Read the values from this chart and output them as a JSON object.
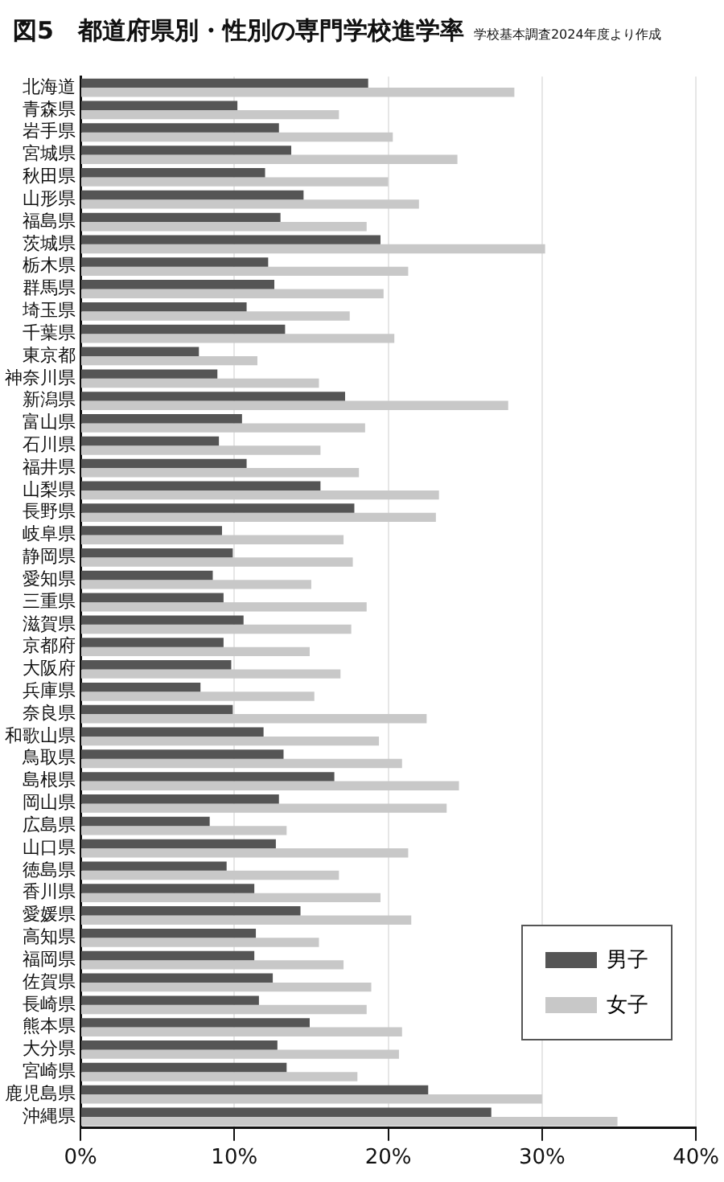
{
  "chart_data": {
    "type": "bar",
    "orientation": "horizontal",
    "title": "図5　都道府県別・性別の専門学校進学率",
    "annotations": [
      "学校基本調査2024年度より作成"
    ],
    "categories": [
      "北海道",
      "青森県",
      "岩手県",
      "宮城県",
      "秋田県",
      "山形県",
      "福島県",
      "茨城県",
      "栃木県",
      "群馬県",
      "埼玉県",
      "千葉県",
      "東京都",
      "神奈川県",
      "新潟県",
      "富山県",
      "石川県",
      "福井県",
      "山梨県",
      "長野県",
      "岐阜県",
      "静岡県",
      "愛知県",
      "三重県",
      "滋賀県",
      "京都府",
      "大阪府",
      "兵庫県",
      "奈良県",
      "和歌山県",
      "鳥取県",
      "島根県",
      "岡山県",
      "広島県",
      "山口県",
      "徳島県",
      "香川県",
      "愛媛県",
      "高知県",
      "福岡県",
      "佐賀県",
      "長崎県",
      "熊本県",
      "大分県",
      "宮崎県",
      "鹿児島県",
      "沖縄県"
    ],
    "series": [
      {
        "name": "男子",
        "color": "#555555",
        "values": [
          18.7,
          10.2,
          12.9,
          13.7,
          12.0,
          14.5,
          13.0,
          19.5,
          12.2,
          12.6,
          10.8,
          13.3,
          7.7,
          8.9,
          17.2,
          10.5,
          9.0,
          10.8,
          15.6,
          17.8,
          9.2,
          9.9,
          8.6,
          9.3,
          10.6,
          9.3,
          9.8,
          7.8,
          9.9,
          11.9,
          13.2,
          16.5,
          12.9,
          8.4,
          12.7,
          9.5,
          11.3,
          14.3,
          11.4,
          11.3,
          12.5,
          11.6,
          14.9,
          12.8,
          13.4,
          22.6,
          26.7
        ]
      },
      {
        "name": "女子",
        "color": "#c8c8c8",
        "values": [
          28.2,
          16.8,
          20.3,
          24.5,
          20.0,
          22.0,
          18.6,
          30.2,
          21.3,
          19.7,
          17.5,
          20.4,
          11.5,
          15.5,
          27.8,
          18.5,
          15.6,
          18.1,
          23.3,
          23.1,
          17.1,
          17.7,
          15.0,
          18.6,
          17.6,
          14.9,
          16.9,
          15.2,
          22.5,
          19.4,
          20.9,
          24.6,
          23.8,
          13.4,
          21.3,
          16.8,
          19.5,
          21.5,
          15.5,
          17.1,
          18.9,
          18.6,
          20.9,
          20.7,
          18.0,
          30.0,
          34.9
        ]
      }
    ],
    "xlim": [
      0,
      40
    ],
    "xticks": [
      {
        "value": 0,
        "label": "0%"
      },
      {
        "value": 10,
        "label": "10%"
      },
      {
        "value": 20,
        "label": "20%"
      },
      {
        "value": 30,
        "label": "30%"
      },
      {
        "value": 40,
        "label": "40%"
      }
    ],
    "grid": "x",
    "legend": "bottom right"
  }
}
